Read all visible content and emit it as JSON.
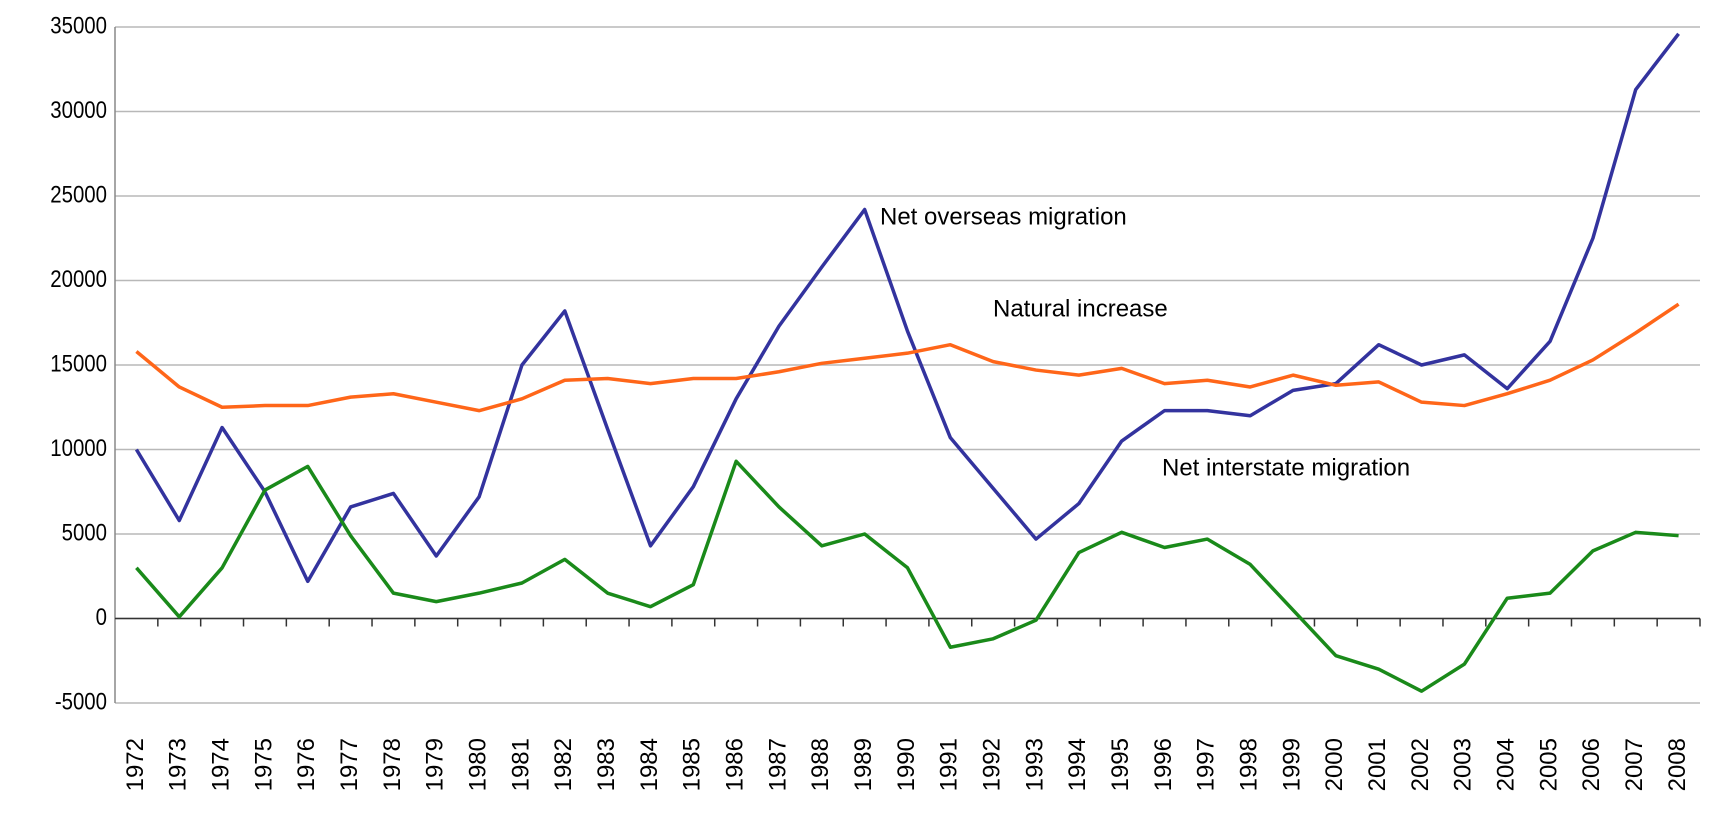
{
  "chart_data": {
    "type": "line",
    "categories": [
      "1972",
      "1973",
      "1974",
      "1975",
      "1976",
      "1977",
      "1978",
      "1979",
      "1980",
      "1981",
      "1982",
      "1983",
      "1984",
      "1985",
      "1986",
      "1987",
      "1988",
      "1989",
      "1990",
      "1991",
      "1992",
      "1993",
      "1994",
      "1995",
      "1996",
      "1997",
      "1998",
      "1999",
      "2000",
      "2001",
      "2002",
      "2003",
      "2004",
      "2005",
      "2006",
      "2007",
      "2008"
    ],
    "series": [
      {
        "name": "Net overseas migration",
        "color": "#33339e",
        "label_color": "#2b2ba6",
        "values": [
          10000,
          5800,
          11300,
          7500,
          2200,
          6600,
          7400,
          3700,
          7200,
          15000,
          18200,
          11200,
          4300,
          7800,
          13000,
          17300,
          20800,
          24200,
          17000,
          10700,
          7700,
          4700,
          6800,
          10500,
          12300,
          12300,
          12000,
          13500,
          13900,
          16200,
          15000,
          15600,
          13600,
          16400,
          22500,
          31300,
          34600
        ]
      },
      {
        "name": "Natural increase",
        "color": "#ff6619",
        "label_color": "#ff9933",
        "values": [
          15800,
          13700,
          12500,
          12600,
          12600,
          13100,
          13300,
          12800,
          12300,
          13000,
          14100,
          14200,
          13900,
          14200,
          14200,
          14600,
          15100,
          15400,
          15700,
          16200,
          15200,
          14700,
          14400,
          14800,
          13900,
          14100,
          13700,
          14400,
          13800,
          14000,
          12800,
          12600,
          13300,
          14100,
          15300,
          16900,
          18600
        ]
      },
      {
        "name": "Net interstate migration",
        "color": "#1a8a1a",
        "label_color": "#99cc33",
        "values": [
          3000,
          100,
          3000,
          7600,
          9000,
          4900,
          1500,
          1000,
          1500,
          2100,
          3500,
          1500,
          700,
          2000,
          9300,
          6600,
          4300,
          5000,
          3000,
          -1700,
          -1200,
          -100,
          3900,
          5100,
          4200,
          4700,
          3200,
          500,
          -2200,
          -3000,
          -4300,
          -2700,
          1200,
          1500,
          4000,
          5100,
          4900
        ]
      }
    ],
    "ylim": [
      -5000,
      35000
    ],
    "yticks": [
      -5000,
      0,
      5000,
      10000,
      15000,
      20000,
      25000,
      30000,
      35000
    ],
    "grid": true
  }
}
